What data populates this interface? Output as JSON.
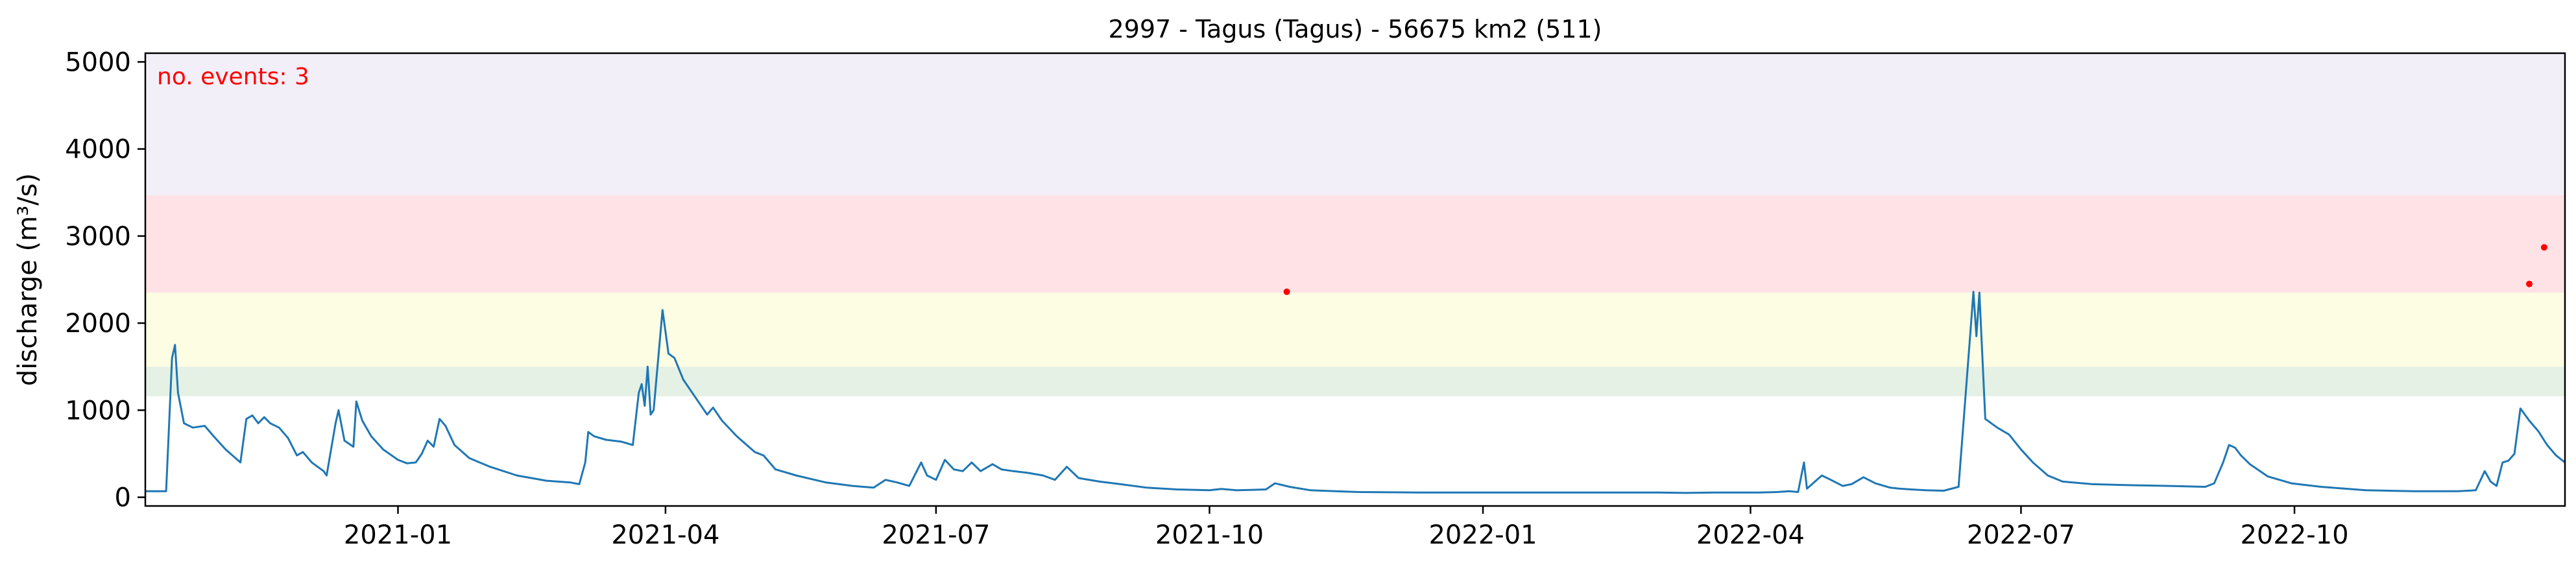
{
  "chart_data": {
    "type": "line",
    "title": "2997 - Tagus (Tagus) - 56675 km2 (511)",
    "xlabel": "",
    "ylabel": "discharge (m³/s)",
    "xlim": [
      "2020-10-08",
      "2022-12-31"
    ],
    "ylim": [
      -100,
      5100
    ],
    "x_ticks": [
      {
        "date": "2021-01-01",
        "label": "2021-01"
      },
      {
        "date": "2021-04-01",
        "label": "2021-04"
      },
      {
        "date": "2021-07-01",
        "label": "2021-07"
      },
      {
        "date": "2021-10-01",
        "label": "2021-10"
      },
      {
        "date": "2022-01-01",
        "label": "2022-01"
      },
      {
        "date": "2022-04-01",
        "label": "2022-04"
      },
      {
        "date": "2022-07-01",
        "label": "2022-07"
      },
      {
        "date": "2022-10-01",
        "label": "2022-10"
      }
    ],
    "y_ticks": [
      {
        "value": 0,
        "label": "0"
      },
      {
        "value": 1000,
        "label": "1000"
      },
      {
        "value": 2000,
        "label": "2000"
      },
      {
        "value": 3000,
        "label": "3000"
      },
      {
        "value": 4000,
        "label": "4000"
      },
      {
        "value": 5000,
        "label": "5000"
      }
    ],
    "grid": false,
    "bands": [
      {
        "from": 1160,
        "to": 1500,
        "color": "#e5f1e4"
      },
      {
        "from": 1500,
        "to": 2350,
        "color": "#fdfde4"
      },
      {
        "from": 2350,
        "to": 3470,
        "color": "#fee2e6"
      },
      {
        "from": 3470,
        "to": 5100,
        "color": "#f2eff9"
      }
    ],
    "line_color": "#1f77b4",
    "event_color": "#ff0000",
    "annotation": "no. events: 3",
    "series": [
      {
        "points": [
          [
            "2020-10-08",
            70
          ],
          [
            "2020-10-15",
            70
          ],
          [
            "2020-10-17",
            1600
          ],
          [
            "2020-10-18",
            1750
          ],
          [
            "2020-10-19",
            1200
          ],
          [
            "2020-10-21",
            850
          ],
          [
            "2020-10-24",
            800
          ],
          [
            "2020-10-28",
            820
          ],
          [
            "2020-10-31",
            700
          ],
          [
            "2020-11-04",
            550
          ],
          [
            "2020-11-09",
            400
          ],
          [
            "2020-11-11",
            900
          ],
          [
            "2020-11-13",
            940
          ],
          [
            "2020-11-15",
            850
          ],
          [
            "2020-11-17",
            920
          ],
          [
            "2020-11-19",
            850
          ],
          [
            "2020-11-22",
            800
          ],
          [
            "2020-11-25",
            680
          ],
          [
            "2020-11-28",
            480
          ],
          [
            "2020-11-30",
            520
          ],
          [
            "2020-12-03",
            400
          ],
          [
            "2020-12-07",
            300
          ],
          [
            "2020-12-08",
            250
          ],
          [
            "2020-12-11",
            850
          ],
          [
            "2020-12-12",
            1000
          ],
          [
            "2020-12-14",
            650
          ],
          [
            "2020-12-17",
            580
          ],
          [
            "2020-12-18",
            1100
          ],
          [
            "2020-12-20",
            880
          ],
          [
            "2020-12-23",
            700
          ],
          [
            "2020-12-27",
            550
          ],
          [
            "2021-01-01",
            430
          ],
          [
            "2021-01-04",
            390
          ],
          [
            "2021-01-07",
            400
          ],
          [
            "2021-01-09",
            500
          ],
          [
            "2021-01-11",
            650
          ],
          [
            "2021-01-13",
            580
          ],
          [
            "2021-01-15",
            900
          ],
          [
            "2021-01-17",
            820
          ],
          [
            "2021-01-20",
            600
          ],
          [
            "2021-01-25",
            450
          ],
          [
            "2021-02-01",
            350
          ],
          [
            "2021-02-10",
            250
          ],
          [
            "2021-02-20",
            190
          ],
          [
            "2021-02-28",
            170
          ],
          [
            "2021-03-03",
            150
          ],
          [
            "2021-03-05",
            400
          ],
          [
            "2021-03-06",
            750
          ],
          [
            "2021-03-08",
            700
          ],
          [
            "2021-03-12",
            660
          ],
          [
            "2021-03-17",
            640
          ],
          [
            "2021-03-21",
            600
          ],
          [
            "2021-03-23",
            1200
          ],
          [
            "2021-03-24",
            1300
          ],
          [
            "2021-03-25",
            1050
          ],
          [
            "2021-03-26",
            1500
          ],
          [
            "2021-03-27",
            950
          ],
          [
            "2021-03-28",
            1000
          ],
          [
            "2021-03-31",
            2150
          ],
          [
            "2021-04-02",
            1650
          ],
          [
            "2021-04-04",
            1600
          ],
          [
            "2021-04-07",
            1350
          ],
          [
            "2021-04-11",
            1150
          ],
          [
            "2021-04-15",
            950
          ],
          [
            "2021-04-17",
            1030
          ],
          [
            "2021-04-20",
            880
          ],
          [
            "2021-04-25",
            700
          ],
          [
            "2021-05-01",
            520
          ],
          [
            "2021-05-04",
            480
          ],
          [
            "2021-05-08",
            320
          ],
          [
            "2021-05-15",
            250
          ],
          [
            "2021-05-25",
            170
          ],
          [
            "2021-06-03",
            130
          ],
          [
            "2021-06-10",
            110
          ],
          [
            "2021-06-14",
            200
          ],
          [
            "2021-06-18",
            170
          ],
          [
            "2021-06-22",
            130
          ],
          [
            "2021-06-26",
            400
          ],
          [
            "2021-06-28",
            250
          ],
          [
            "2021-07-01",
            200
          ],
          [
            "2021-07-04",
            430
          ],
          [
            "2021-07-07",
            320
          ],
          [
            "2021-07-10",
            300
          ],
          [
            "2021-07-13",
            400
          ],
          [
            "2021-07-16",
            300
          ],
          [
            "2021-07-20",
            380
          ],
          [
            "2021-07-23",
            320
          ],
          [
            "2021-07-27",
            300
          ],
          [
            "2021-08-01",
            280
          ],
          [
            "2021-08-06",
            250
          ],
          [
            "2021-08-10",
            200
          ],
          [
            "2021-08-14",
            350
          ],
          [
            "2021-08-18",
            220
          ],
          [
            "2021-08-25",
            180
          ],
          [
            "2021-09-01",
            150
          ],
          [
            "2021-09-10",
            110
          ],
          [
            "2021-09-20",
            90
          ],
          [
            "2021-10-01",
            80
          ],
          [
            "2021-10-05",
            95
          ],
          [
            "2021-10-10",
            80
          ],
          [
            "2021-10-15",
            85
          ],
          [
            "2021-10-20",
            90
          ],
          [
            "2021-10-23",
            160
          ],
          [
            "2021-10-28",
            120
          ],
          [
            "2021-11-04",
            80
          ],
          [
            "2021-11-20",
            60
          ],
          [
            "2021-12-10",
            55
          ],
          [
            "2022-01-01",
            55
          ],
          [
            "2022-01-20",
            55
          ],
          [
            "2022-02-10",
            55
          ],
          [
            "2022-03-01",
            55
          ],
          [
            "2022-03-10",
            50
          ],
          [
            "2022-03-20",
            55
          ],
          [
            "2022-04-04",
            55
          ],
          [
            "2022-04-10",
            60
          ],
          [
            "2022-04-14",
            70
          ],
          [
            "2022-04-17",
            60
          ],
          [
            "2022-04-19",
            400
          ],
          [
            "2022-04-20",
            100
          ],
          [
            "2022-04-25",
            250
          ],
          [
            "2022-04-28",
            200
          ],
          [
            "2022-05-02",
            130
          ],
          [
            "2022-05-05",
            150
          ],
          [
            "2022-05-09",
            230
          ],
          [
            "2022-05-13",
            160
          ],
          [
            "2022-05-18",
            110
          ],
          [
            "2022-05-21",
            100
          ],
          [
            "2022-05-25",
            90
          ],
          [
            "2022-05-30",
            80
          ],
          [
            "2022-06-05",
            75
          ],
          [
            "2022-06-10",
            120
          ],
          [
            "2022-06-14",
            1900
          ],
          [
            "2022-06-15",
            2360
          ],
          [
            "2022-06-16",
            1850
          ],
          [
            "2022-06-17",
            2350
          ],
          [
            "2022-06-19",
            900
          ],
          [
            "2022-06-23",
            800
          ],
          [
            "2022-06-27",
            720
          ],
          [
            "2022-07-01",
            550
          ],
          [
            "2022-07-05",
            400
          ],
          [
            "2022-07-10",
            250
          ],
          [
            "2022-07-15",
            180
          ],
          [
            "2022-07-25",
            150
          ],
          [
            "2022-08-05",
            140
          ],
          [
            "2022-08-20",
            130
          ],
          [
            "2022-09-01",
            120
          ],
          [
            "2022-09-04",
            160
          ],
          [
            "2022-09-07",
            400
          ],
          [
            "2022-09-09",
            600
          ],
          [
            "2022-09-11",
            570
          ],
          [
            "2022-09-13",
            480
          ],
          [
            "2022-09-16",
            380
          ],
          [
            "2022-09-22",
            240
          ],
          [
            "2022-09-30",
            160
          ],
          [
            "2022-10-10",
            120
          ],
          [
            "2022-10-25",
            80
          ],
          [
            "2022-11-10",
            70
          ],
          [
            "2022-11-25",
            70
          ],
          [
            "2022-12-01",
            80
          ],
          [
            "2022-12-04",
            300
          ],
          [
            "2022-12-06",
            180
          ],
          [
            "2022-12-08",
            130
          ],
          [
            "2022-12-10",
            400
          ],
          [
            "2022-12-12",
            420
          ],
          [
            "2022-12-14",
            500
          ],
          [
            "2022-12-16",
            1020
          ],
          [
            "2022-12-19",
            880
          ],
          [
            "2022-12-22",
            760
          ],
          [
            "2022-12-25",
            600
          ],
          [
            "2022-12-28",
            480
          ],
          [
            "2022-12-31",
            400
          ]
        ]
      }
    ],
    "events": [
      {
        "date": "2021-10-27",
        "value": 2360
      },
      {
        "date": "2022-12-19",
        "value": 2450
      },
      {
        "date": "2022-12-24",
        "value": 2870
      }
    ]
  }
}
